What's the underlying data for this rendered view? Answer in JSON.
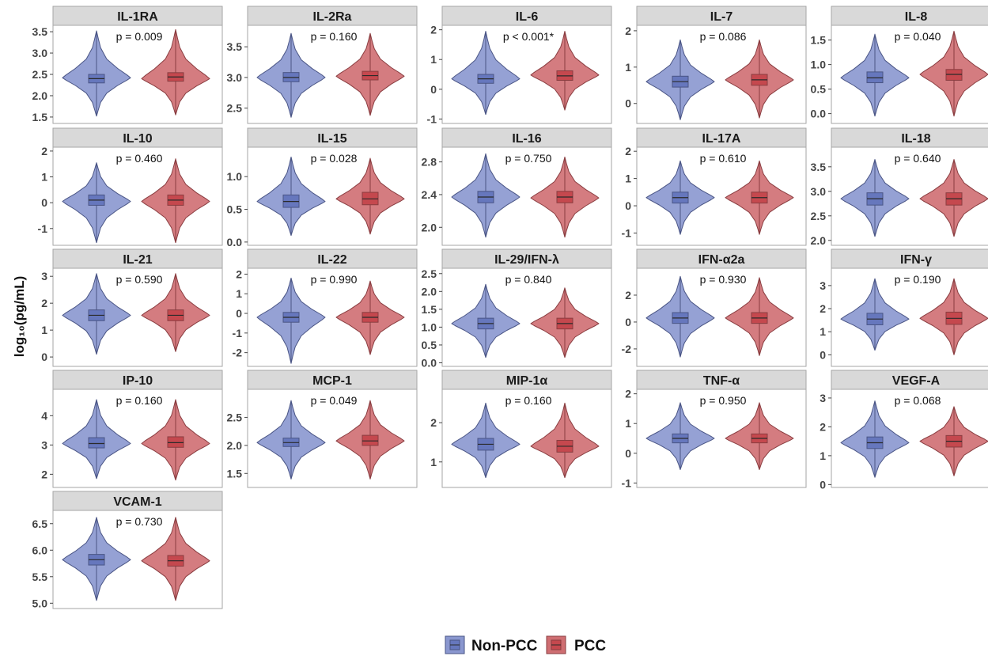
{
  "chart_data": {
    "type": "violin",
    "ylabel": "log₁₀(pg/mL)",
    "legend": {
      "position": "bottom",
      "entries": [
        {
          "name": "Non-PCC",
          "fill": "#8a97cf",
          "box": "#6677bd",
          "stroke": "#4a5585"
        },
        {
          "name": "PCC",
          "fill": "#cf6e72",
          "box": "#c5484e",
          "stroke": "#8a3d40"
        }
      ]
    },
    "panels": [
      {
        "title": "IL-1RA",
        "pvalue": "p = 0.009",
        "ylim": [
          1.35,
          3.65
        ],
        "ticks": [
          1.5,
          2.0,
          2.5,
          3.0,
          3.5
        ],
        "tick_labels": [
          "1.5",
          "2.0",
          "2.5",
          "3.0",
          "3.5"
        ],
        "groups": [
          {
            "median": 2.4,
            "q1": 2.3,
            "q3": 2.5,
            "min": 1.52,
            "max": 3.52,
            "peak": 2.42
          },
          {
            "median": 2.44,
            "q1": 2.34,
            "q3": 2.54,
            "min": 1.55,
            "max": 3.55,
            "peak": 2.4
          }
        ]
      },
      {
        "title": "IL-2Ra",
        "pvalue": "p = 0.160",
        "ylim": [
          2.25,
          3.85
        ],
        "ticks": [
          2.5,
          3.0,
          3.5
        ],
        "tick_labels": [
          "2.5",
          "3.0",
          "3.5"
        ],
        "groups": [
          {
            "median": 3.0,
            "q1": 2.93,
            "q3": 3.08,
            "min": 2.35,
            "max": 3.72,
            "peak": 3.0
          },
          {
            "median": 3.03,
            "q1": 2.96,
            "q3": 3.1,
            "min": 2.38,
            "max": 3.72,
            "peak": 3.02
          }
        ]
      },
      {
        "title": "IL-6",
        "pvalue": "p < 0.001*",
        "ylim": [
          -1.15,
          2.15
        ],
        "ticks": [
          -1,
          0,
          1,
          2
        ],
        "tick_labels": [
          "-1",
          "0",
          "1",
          "2"
        ],
        "groups": [
          {
            "median": 0.35,
            "q1": 0.2,
            "q3": 0.5,
            "min": -0.85,
            "max": 1.95,
            "peak": 0.35
          },
          {
            "median": 0.45,
            "q1": 0.3,
            "q3": 0.62,
            "min": -0.7,
            "max": 1.95,
            "peak": 0.48
          }
        ]
      },
      {
        "title": "IL-7",
        "pvalue": "p = 0.086",
        "ylim": [
          -0.55,
          2.15
        ],
        "ticks": [
          0,
          1,
          2
        ],
        "tick_labels": [
          "0",
          "1",
          "2"
        ],
        "groups": [
          {
            "median": 0.6,
            "q1": 0.45,
            "q3": 0.75,
            "min": -0.45,
            "max": 1.75,
            "peak": 0.6
          },
          {
            "median": 0.65,
            "q1": 0.5,
            "q3": 0.8,
            "min": -0.4,
            "max": 1.75,
            "peak": 0.65
          }
        ]
      },
      {
        "title": "IL-8",
        "pvalue": "p = 0.040",
        "ylim": [
          -0.2,
          1.8
        ],
        "ticks": [
          0.0,
          0.5,
          1.0,
          1.5
        ],
        "tick_labels": [
          "0.0",
          "0.5",
          "1.0",
          "1.5"
        ],
        "groups": [
          {
            "median": 0.73,
            "q1": 0.63,
            "q3": 0.85,
            "min": -0.05,
            "max": 1.62,
            "peak": 0.73
          },
          {
            "median": 0.8,
            "q1": 0.68,
            "q3": 0.9,
            "min": -0.05,
            "max": 1.68,
            "peak": 0.8
          }
        ]
      },
      {
        "title": "IL-10",
        "pvalue": "p = 0.460",
        "ylim": [
          -1.65,
          2.15
        ],
        "ticks": [
          -1,
          0,
          1,
          2
        ],
        "tick_labels": [
          "-1",
          "0",
          "1",
          "2"
        ],
        "groups": [
          {
            "median": 0.1,
            "q1": -0.1,
            "q3": 0.3,
            "min": -1.55,
            "max": 1.55,
            "peak": 0.05
          },
          {
            "median": 0.1,
            "q1": -0.1,
            "q3": 0.3,
            "min": -1.55,
            "max": 1.7,
            "peak": 0.05
          }
        ]
      },
      {
        "title": "IL-15",
        "pvalue": "p = 0.028",
        "ylim": [
          -0.05,
          1.45
        ],
        "ticks": [
          0.0,
          0.5,
          1.0
        ],
        "tick_labels": [
          "0.0",
          "0.5",
          "1.0"
        ],
        "groups": [
          {
            "median": 0.62,
            "q1": 0.53,
            "q3": 0.72,
            "min": 0.1,
            "max": 1.3,
            "peak": 0.62
          },
          {
            "median": 0.66,
            "q1": 0.57,
            "q3": 0.76,
            "min": 0.12,
            "max": 1.28,
            "peak": 0.66
          }
        ]
      },
      {
        "title": "IL-16",
        "pvalue": "p = 0.750",
        "ylim": [
          1.78,
          2.98
        ],
        "ticks": [
          2.0,
          2.4,
          2.8
        ],
        "tick_labels": [
          "2.0",
          "2.4",
          "2.8"
        ],
        "groups": [
          {
            "median": 2.37,
            "q1": 2.3,
            "q3": 2.44,
            "min": 1.88,
            "max": 2.9,
            "peak": 2.37
          },
          {
            "median": 2.37,
            "q1": 2.3,
            "q3": 2.44,
            "min": 1.88,
            "max": 2.86,
            "peak": 2.36
          }
        ]
      },
      {
        "title": "IL-17A",
        "pvalue": "p = 0.610",
        "ylim": [
          -1.45,
          2.15
        ],
        "ticks": [
          -1,
          0,
          1,
          2
        ],
        "tick_labels": [
          "-1",
          "0",
          "1",
          "2"
        ],
        "groups": [
          {
            "median": 0.3,
            "q1": 0.1,
            "q3": 0.5,
            "min": -1.05,
            "max": 1.65,
            "peak": 0.3
          },
          {
            "median": 0.3,
            "q1": 0.1,
            "q3": 0.5,
            "min": -1.05,
            "max": 1.65,
            "peak": 0.3
          }
        ]
      },
      {
        "title": "IL-18",
        "pvalue": "p = 0.640",
        "ylim": [
          1.9,
          3.9
        ],
        "ticks": [
          2.0,
          2.5,
          3.0,
          3.5
        ],
        "tick_labels": [
          "2.0",
          "2.5",
          "3.0",
          "3.5"
        ],
        "groups": [
          {
            "median": 2.85,
            "q1": 2.72,
            "q3": 2.97,
            "min": 2.08,
            "max": 3.65,
            "peak": 2.85
          },
          {
            "median": 2.85,
            "q1": 2.72,
            "q3": 2.97,
            "min": 2.08,
            "max": 3.65,
            "peak": 2.85
          }
        ]
      },
      {
        "title": "IL-21",
        "pvalue": "p = 0.590",
        "ylim": [
          -0.35,
          3.3
        ],
        "ticks": [
          0,
          1,
          2,
          3
        ],
        "tick_labels": [
          "0",
          "1",
          "2",
          "3"
        ],
        "groups": [
          {
            "median": 1.55,
            "q1": 1.35,
            "q3": 1.75,
            "min": 0.1,
            "max": 3.1,
            "peak": 1.55
          },
          {
            "median": 1.55,
            "q1": 1.35,
            "q3": 1.75,
            "min": 0.2,
            "max": 3.1,
            "peak": 1.55
          }
        ]
      },
      {
        "title": "IL-22",
        "pvalue": "p = 0.990",
        "ylim": [
          -2.7,
          2.3
        ],
        "ticks": [
          -2,
          -1,
          0,
          1,
          2
        ],
        "tick_labels": [
          "-2",
          "-1",
          "0",
          "1",
          "2"
        ],
        "groups": [
          {
            "median": -0.2,
            "q1": -0.45,
            "q3": 0.05,
            "min": -2.55,
            "max": 1.8,
            "peak": -0.2
          },
          {
            "median": -0.2,
            "q1": -0.45,
            "q3": 0.05,
            "min": -2.1,
            "max": 1.65,
            "peak": -0.2
          }
        ]
      },
      {
        "title": "IL-29/IFN-λ",
        "pvalue": "p = 0.840",
        "ylim": [
          -0.1,
          2.65
        ],
        "ticks": [
          0.0,
          0.5,
          1.0,
          1.5,
          2.0,
          2.5
        ],
        "tick_labels": [
          "0.0",
          "0.5",
          "1.0",
          "1.5",
          "2.0",
          "2.5"
        ],
        "groups": [
          {
            "median": 1.1,
            "q1": 0.95,
            "q3": 1.25,
            "min": 0.15,
            "max": 2.2,
            "peak": 1.1
          },
          {
            "median": 1.1,
            "q1": 0.95,
            "q3": 1.25,
            "min": 0.15,
            "max": 2.1,
            "peak": 1.1
          }
        ]
      },
      {
        "title": "IFN-α2a",
        "pvalue": "p = 0.930",
        "ylim": [
          -3.3,
          4.0
        ],
        "ticks": [
          -2,
          0,
          2
        ],
        "tick_labels": [
          "-2",
          "0",
          "2"
        ],
        "groups": [
          {
            "median": 0.3,
            "q1": -0.1,
            "q3": 0.7,
            "min": -2.6,
            "max": 3.4,
            "peak": 0.3
          },
          {
            "median": 0.3,
            "q1": -0.1,
            "q3": 0.7,
            "min": -2.5,
            "max": 3.3,
            "peak": 0.3
          }
        ]
      },
      {
        "title": "IFN-γ",
        "pvalue": "p = 0.190",
        "ylim": [
          -0.5,
          3.75
        ],
        "ticks": [
          0,
          1,
          2,
          3
        ],
        "tick_labels": [
          "0",
          "1",
          "2",
          "3"
        ],
        "groups": [
          {
            "median": 1.55,
            "q1": 1.3,
            "q3": 1.8,
            "min": 0.2,
            "max": 3.3,
            "peak": 1.55
          },
          {
            "median": 1.58,
            "q1": 1.32,
            "q3": 1.85,
            "min": 0.0,
            "max": 3.3,
            "peak": 1.58
          }
        ]
      },
      {
        "title": "IP-10",
        "pvalue": "p = 0.160",
        "ylim": [
          1.55,
          4.9
        ],
        "ticks": [
          2,
          3,
          4
        ],
        "tick_labels": [
          "2",
          "3",
          "4"
        ],
        "groups": [
          {
            "median": 3.05,
            "q1": 2.9,
            "q3": 3.25,
            "min": 1.85,
            "max": 4.55,
            "peak": 3.05
          },
          {
            "median": 3.08,
            "q1": 2.92,
            "q3": 3.28,
            "min": 1.8,
            "max": 4.55,
            "peak": 3.05
          }
        ]
      },
      {
        "title": "MCP-1",
        "pvalue": "p = 0.049",
        "ylim": [
          1.25,
          3.0
        ],
        "ticks": [
          1.5,
          2.0,
          2.5
        ],
        "tick_labels": [
          "1.5",
          "2.0",
          "2.5"
        ],
        "groups": [
          {
            "median": 2.05,
            "q1": 1.98,
            "q3": 2.13,
            "min": 1.4,
            "max": 2.8,
            "peak": 2.05
          },
          {
            "median": 2.08,
            "q1": 2.0,
            "q3": 2.18,
            "min": 1.4,
            "max": 2.8,
            "peak": 2.08
          }
        ]
      },
      {
        "title": "MIP-1α",
        "pvalue": "p = 0.160",
        "ylim": [
          0.35,
          2.85
        ],
        "ticks": [
          1,
          2
        ],
        "tick_labels": [
          "1",
          "2"
        ],
        "groups": [
          {
            "median": 1.45,
            "q1": 1.3,
            "q3": 1.6,
            "min": 0.6,
            "max": 2.5,
            "peak": 1.45
          },
          {
            "median": 1.4,
            "q1": 1.25,
            "q3": 1.55,
            "min": 0.6,
            "max": 2.5,
            "peak": 1.4
          }
        ]
      },
      {
        "title": "TNF-α",
        "pvalue": "p = 0.950",
        "ylim": [
          -1.15,
          2.15
        ],
        "ticks": [
          -1,
          0,
          1,
          2
        ],
        "tick_labels": [
          "-1",
          "0",
          "1",
          "2"
        ],
        "groups": [
          {
            "median": 0.5,
            "q1": 0.35,
            "q3": 0.65,
            "min": -0.55,
            "max": 1.7,
            "peak": 0.5
          },
          {
            "median": 0.5,
            "q1": 0.35,
            "q3": 0.65,
            "min": -0.55,
            "max": 1.7,
            "peak": 0.5
          }
        ]
      },
      {
        "title": "VEGF-A",
        "pvalue": "p = 0.068",
        "ylim": [
          -0.1,
          3.3
        ],
        "ticks": [
          0,
          1,
          2,
          3
        ],
        "tick_labels": [
          "0",
          "1",
          "2",
          "3"
        ],
        "groups": [
          {
            "median": 1.45,
            "q1": 1.25,
            "q3": 1.65,
            "min": 0.25,
            "max": 2.9,
            "peak": 1.45
          },
          {
            "median": 1.5,
            "q1": 1.3,
            "q3": 1.7,
            "min": 0.3,
            "max": 2.7,
            "peak": 1.5
          }
        ]
      },
      {
        "title": "VCAM-1",
        "pvalue": "p = 0.730",
        "ylim": [
          4.9,
          6.75
        ],
        "ticks": [
          5.0,
          5.5,
          6.0,
          6.5
        ],
        "tick_labels": [
          "5.0",
          "5.5",
          "6.0",
          "6.5"
        ],
        "groups": [
          {
            "median": 5.82,
            "q1": 5.72,
            "q3": 5.92,
            "min": 5.05,
            "max": 6.62,
            "peak": 5.82
          },
          {
            "median": 5.8,
            "q1": 5.7,
            "q3": 5.9,
            "min": 5.05,
            "max": 6.62,
            "peak": 5.8
          }
        ]
      }
    ]
  }
}
